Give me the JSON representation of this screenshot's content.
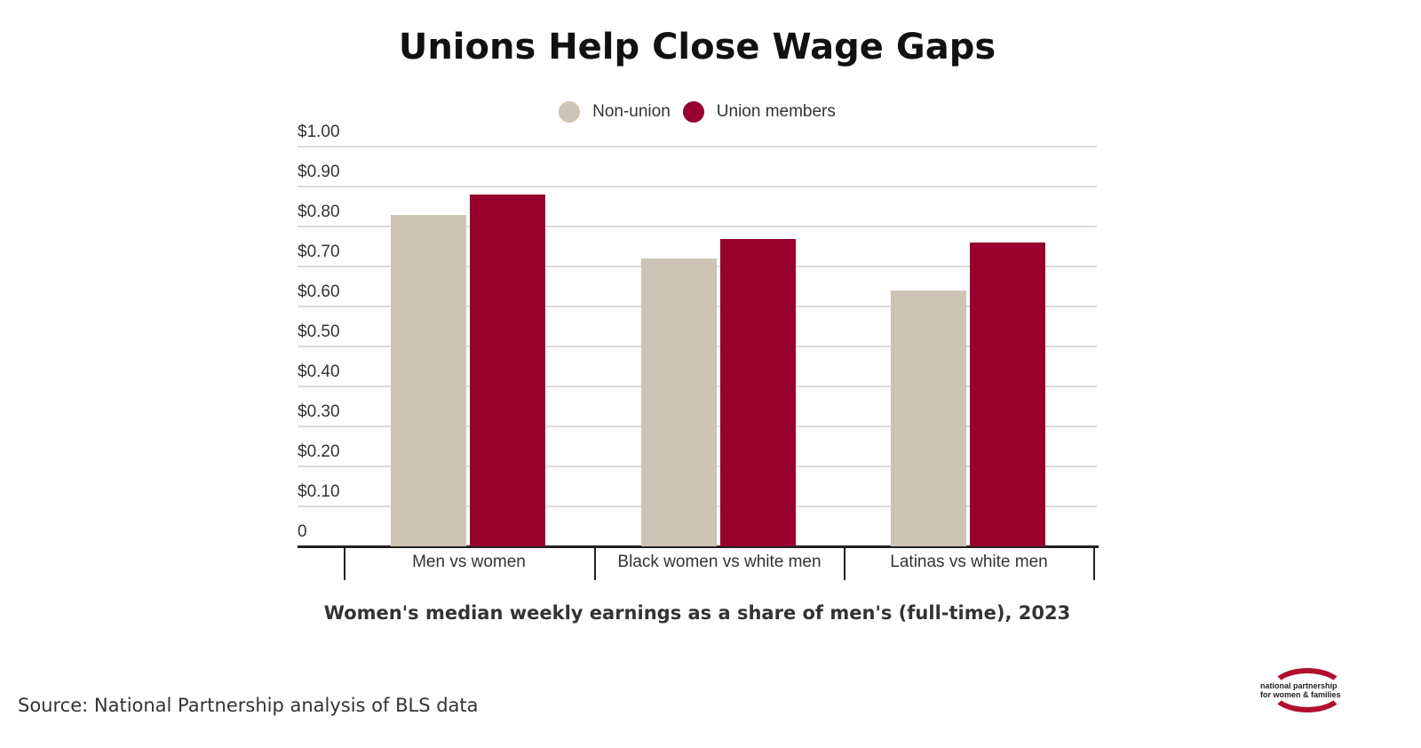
{
  "title": "Unions Help Close Wage Gaps",
  "legend": [
    {
      "label": "Non-union",
      "color": "#cec4b5"
    },
    {
      "label": "Union members",
      "color": "#98002e"
    }
  ],
  "y_axis": {
    "ticks": [
      "0",
      "$0.10",
      "$0.20",
      "$0.30",
      "$0.40",
      "$0.50",
      "$0.60",
      "$0.70",
      "$0.80",
      "$0.90",
      "$1.00"
    ]
  },
  "x_axis": {
    "categories": [
      "Men vs women",
      "Black women vs white men",
      "Latinas vs white men"
    ]
  },
  "subtitle": "Women's median weekly earnings as a share of men's (full-time), 2023",
  "source": "Source: National Partnership analysis of BLS data",
  "logo": {
    "line1": "national partnership",
    "line2": "for women & families"
  },
  "chart_data": {
    "type": "bar",
    "title": "Unions Help Close Wage Gaps",
    "xlabel": "Women's median weekly earnings as a share of men's (full-time), 2023",
    "ylabel": "",
    "categories": [
      "Men vs women",
      "Black women vs white men",
      "Latinas vs white men"
    ],
    "series": [
      {
        "name": "Non-union",
        "color": "#cec4b5",
        "values": [
          0.83,
          0.72,
          0.64
        ]
      },
      {
        "name": "Union members",
        "color": "#98002e",
        "values": [
          0.88,
          0.77,
          0.76
        ]
      }
    ],
    "ylim": [
      0,
      1.0
    ],
    "yticks": [
      0,
      0.1,
      0.2,
      0.3,
      0.4,
      0.5,
      0.6,
      0.7,
      0.8,
      0.9,
      1.0
    ],
    "grid": true,
    "legend_position": "top"
  }
}
